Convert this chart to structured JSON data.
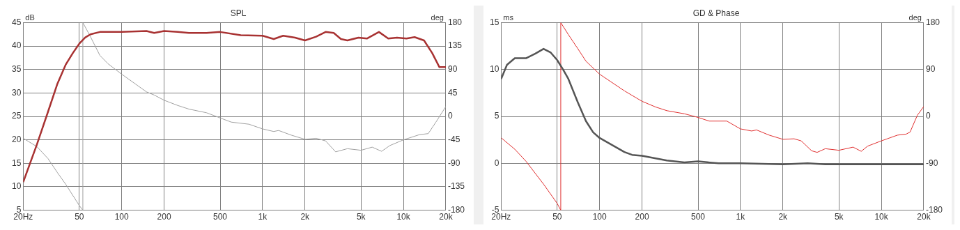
{
  "chart_data": [
    {
      "type": "line",
      "title": "SPL",
      "ylabel": "dB",
      "y2label": "deg",
      "log": "x",
      "grid": true,
      "xlim": [
        20,
        20000
      ],
      "xticks": [
        {
          "value": 20,
          "label": "20Hz"
        },
        50,
        100,
        200,
        500,
        {
          "value": 1000,
          "label": "1k"
        },
        {
          "value": 2000,
          "label": "2k"
        },
        {
          "value": 5000,
          "label": "5k"
        },
        {
          "value": 10000,
          "label": "10k"
        },
        {
          "value": 20000,
          "label": "20k"
        }
      ],
      "ylim": [
        5,
        45
      ],
      "yticks": [
        5,
        10,
        15,
        20,
        25,
        30,
        35,
        40,
        45
      ],
      "y2lim": [
        -180,
        180
      ],
      "y2ticks": [
        -180,
        -135,
        -90,
        -45,
        0,
        45,
        90,
        135,
        180
      ],
      "series": [
        {
          "color": "#a83232",
          "x": [
            20,
            25,
            30,
            35,
            40,
            45,
            50,
            55,
            60,
            70,
            80,
            100,
            150,
            170,
            200,
            250,
            300,
            400,
            500,
            700,
            1000,
            1200,
            1400,
            1700,
            2000,
            2400,
            2800,
            3200,
            3600,
            4000,
            4800,
            5500,
            6700,
            7800,
            9000,
            10500,
            12000,
            14000,
            16000,
            18000,
            20000
          ],
          "values": [
            11,
            19,
            26,
            32,
            36,
            38.5,
            40.5,
            41.8,
            42.5,
            43,
            43,
            43,
            43.2,
            42.8,
            43.2,
            43,
            42.8,
            42.8,
            43,
            42.3,
            42.2,
            41.5,
            42.2,
            41.8,
            41.2,
            42,
            43,
            42.8,
            41.5,
            41.2,
            41.8,
            41.6,
            43,
            41.6,
            41.8,
            41.6,
            41.9,
            41.2,
            38.5,
            35.5,
            35.5
          ]
        },
        {
          "color": "#a0a0a0",
          "axis": "y2",
          "x": [
            20,
            25,
            30,
            35,
            40,
            50,
            53,
            53,
            60,
            70,
            80,
            100,
            150,
            170,
            200,
            250,
            300,
            400,
            500,
            600,
            800,
            1000,
            1200,
            1300,
            1600,
            2000,
            2400,
            2800,
            3300,
            4000,
            5000,
            6000,
            7000,
            8000,
            10000,
            13000,
            15000,
            17000,
            20000
          ],
          "values": [
            -42,
            -58,
            -81,
            -108,
            -130,
            -171,
            -180,
            180,
            153,
            117,
            101,
            81,
            47,
            41,
            31,
            21,
            14,
            7,
            -3,
            -11,
            -15,
            -24,
            -29,
            -27,
            -36,
            -44,
            -42,
            -47,
            -68,
            -62,
            -65,
            -59,
            -67,
            -56,
            -45,
            -35,
            -33,
            -11,
            19
          ]
        }
      ]
    },
    {
      "type": "line",
      "title": "GD & Phase",
      "ylabel": "ms",
      "y2label": "deg",
      "log": "x",
      "grid": true,
      "xlim": [
        20,
        20000
      ],
      "xticks": [
        {
          "value": 20,
          "label": "20Hz"
        },
        50,
        100,
        200,
        500,
        {
          "value": 1000,
          "label": "1k"
        },
        {
          "value": 2000,
          "label": "2k"
        },
        {
          "value": 5000,
          "label": "5k"
        },
        {
          "value": 10000,
          "label": "10k"
        },
        {
          "value": 20000,
          "label": "20k"
        }
      ],
      "ylim": [
        -5,
        15
      ],
      "yticks": [
        -5,
        0,
        5,
        10,
        15
      ],
      "y2lim": [
        -180,
        180
      ],
      "y2ticks": [
        -180,
        -90,
        0,
        90,
        180
      ],
      "series": [
        {
          "color": "#555555",
          "x": [
            20,
            22,
            25,
            30,
            35,
            40,
            45,
            50,
            55,
            60,
            70,
            80,
            90,
            100,
            150,
            170,
            200,
            300,
            400,
            500,
            700,
            1000,
            2000,
            3000,
            4000,
            10000,
            20000
          ],
          "values": [
            9,
            10.5,
            11.2,
            11.2,
            11.7,
            12.2,
            11.8,
            11,
            10,
            9,
            6.5,
            4.5,
            3.3,
            2.7,
            1.2,
            0.9,
            0.8,
            0.3,
            0.1,
            0.2,
            0,
            0,
            -0.1,
            0,
            -0.1,
            -0.1,
            -0.1
          ]
        },
        {
          "color": "#e03030",
          "axis": "y2",
          "x": [
            20,
            25,
            30,
            40,
            50,
            53,
            53,
            60,
            70,
            80,
            100,
            150,
            200,
            250,
            300,
            400,
            500,
            600,
            800,
            1000,
            1200,
            1300,
            1600,
            2000,
            2400,
            2700,
            3200,
            3500,
            4000,
            5000,
            6300,
            7200,
            8000,
            10000,
            11000,
            13000,
            15000,
            16000,
            18000,
            20000
          ],
          "values": [
            -41,
            -63,
            -86,
            -130,
            -167,
            -180,
            180,
            157,
            130,
            106,
            81,
            49,
            29,
            18,
            11,
            5,
            -2,
            -9,
            -9,
            -24,
            -28,
            -26,
            -36,
            -44,
            -43,
            -47,
            -66,
            -69,
            -62,
            -65,
            -59,
            -67,
            -57,
            -47,
            -43,
            -36,
            -34,
            -30,
            2,
            19
          ]
        }
      ]
    }
  ]
}
